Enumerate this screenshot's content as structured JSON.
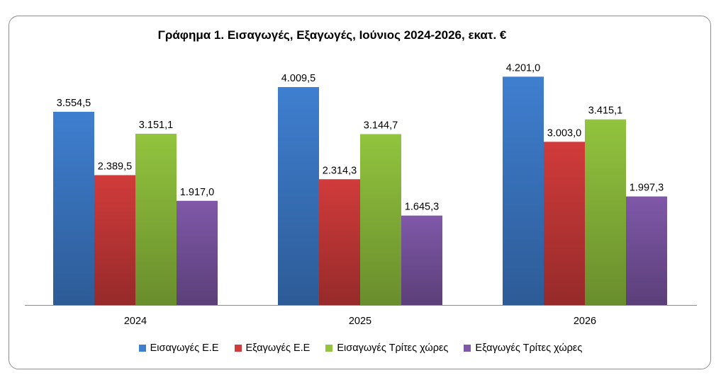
{
  "chart_data": {
    "type": "bar",
    "title": "Γράφημα 1. Εισαγωγές, Εξαγωγές, Ιούνιος 2024-2026, εκατ. €",
    "categories": [
      "2024",
      "2025",
      "2026"
    ],
    "series": [
      {
        "name": "Εισαγωγές Ε.Ε",
        "color": "#3f7fd0",
        "values": [
          3554.5,
          4009.5,
          4201.0
        ],
        "labels": [
          "3.554,5",
          "4.009,5",
          "4.201,0"
        ]
      },
      {
        "name": "Εξαγωγές  Ε.Ε",
        "color": "#d13b3b",
        "values": [
          2389.5,
          2314.3,
          3003.0
        ],
        "labels": [
          "2.389,5",
          "2.314,3",
          "3.003,0"
        ]
      },
      {
        "name": "Εισαγωγές Τρίτες χώρες",
        "color": "#92c43e",
        "values": [
          3151.1,
          3144.7,
          3415.1
        ],
        "labels": [
          "3.151,1",
          "3.144,7",
          "3.415,1"
        ]
      },
      {
        "name": "Εξαγωγές Τρίτες χώρες",
        "color": "#7f58a8",
        "values": [
          1917.0,
          1645.3,
          1997.3
        ],
        "labels": [
          "1.917,0",
          "1.645,3",
          "1.997,3"
        ]
      }
    ],
    "ylim": [
      0,
      4500
    ],
    "grid": false,
    "legend_position": "bottom"
  }
}
